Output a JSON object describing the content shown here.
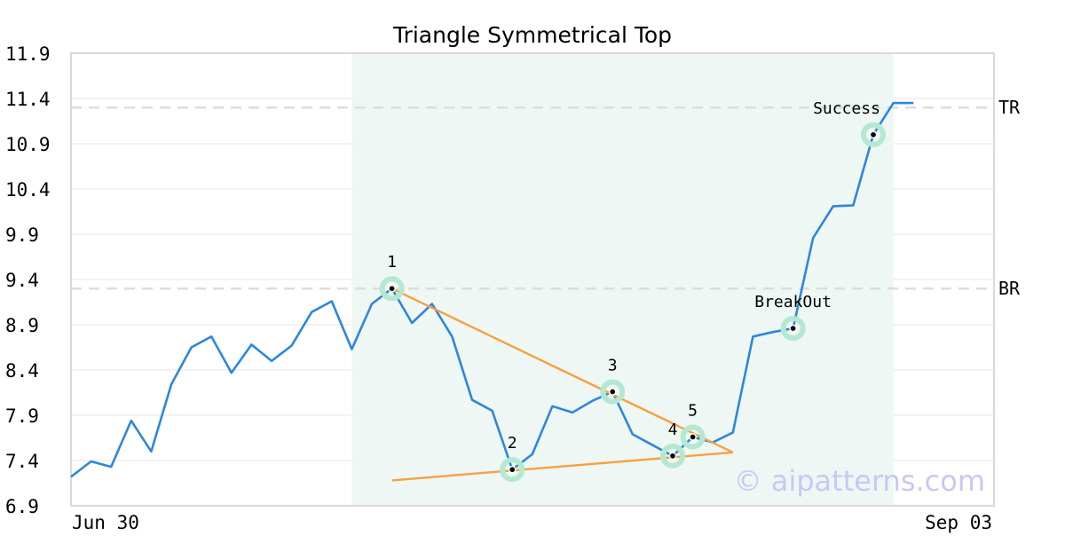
{
  "chart_data": {
    "type": "line",
    "title": "Triangle Symmetrical Top",
    "ylim": [
      6.9,
      11.9
    ],
    "y_ticks": [
      "6.9",
      "7.4",
      "7.9",
      "8.4",
      "8.9",
      "9.4",
      "9.9",
      "10.4",
      "10.9",
      "11.4",
      "11.9"
    ],
    "x_labels": {
      "start": "Jun 30",
      "end": "Sep 03"
    },
    "grid": true,
    "series": [
      {
        "color": "#2e86de",
        "values": [
          7.22,
          7.39,
          7.33,
          7.84,
          7.5,
          8.24,
          8.65,
          8.77,
          8.37,
          8.68,
          8.5,
          8.67,
          9.04,
          9.16,
          8.63,
          9.13,
          9.3,
          8.92,
          9.13,
          8.77,
          8.07,
          7.95,
          7.3,
          7.47,
          8.0,
          7.93,
          8.06,
          8.16,
          7.69,
          7.57,
          7.45,
          7.66,
          7.6,
          7.71,
          8.77,
          8.82,
          8.86,
          9.86,
          10.21,
          10.22,
          11.0,
          11.35,
          11.35
        ]
      }
    ],
    "highlight_range": {
      "from_index": 14,
      "to_index": 41,
      "color": "#eef7f3"
    },
    "points": [
      {
        "label": "1",
        "index": 16,
        "value": 9.3
      },
      {
        "label": "2",
        "index": 22,
        "value": 7.3
      },
      {
        "label": "3",
        "index": 27,
        "value": 8.16
      },
      {
        "label": "4",
        "index": 30,
        "value": 7.45
      },
      {
        "label": "5",
        "index": 31,
        "value": 7.66
      },
      {
        "label": "BreakOut",
        "index": 36,
        "value": 8.86
      },
      {
        "label": "Success",
        "index": 40,
        "value": 11.0
      }
    ],
    "trend_lines": [
      {
        "color": "#f7a040",
        "from": {
          "index": 16,
          "value": 9.3
        },
        "to": {
          "index": 33,
          "value": 7.49
        }
      },
      {
        "color": "#f7a040",
        "from": {
          "index": 16,
          "value": 7.18
        },
        "to": {
          "index": 33,
          "value": 7.49
        }
      }
    ],
    "levels": [
      {
        "label": "TR",
        "value": 11.3
      },
      {
        "label": "BR",
        "value": 9.3
      }
    ],
    "colors": {
      "line": "#2e86de",
      "marker_ring": "#b5e8d1",
      "marker_dot": "#000000",
      "trend": "#f7a040",
      "level": "#dddddd"
    }
  },
  "watermark": "© aipatterns.com"
}
